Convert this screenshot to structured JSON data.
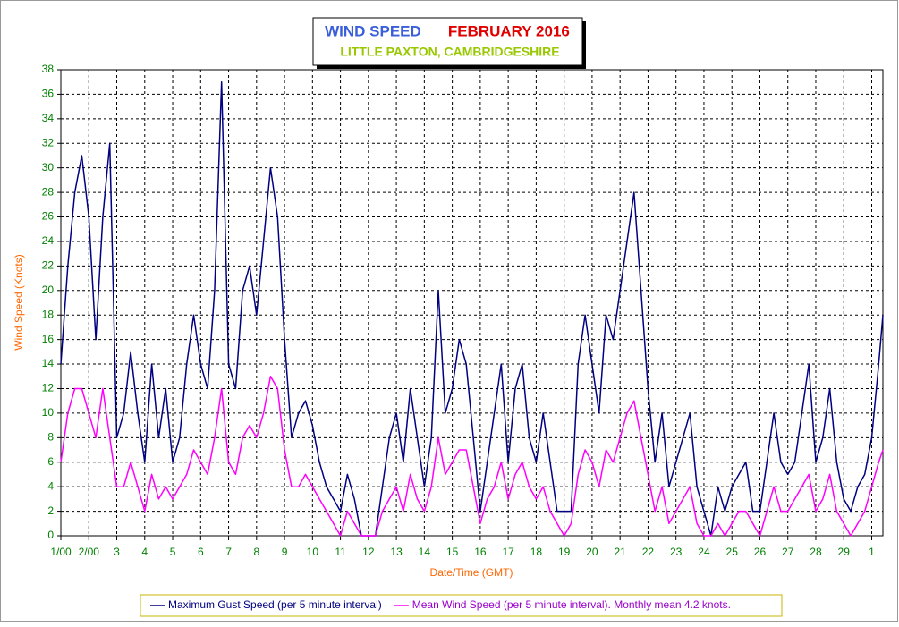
{
  "chart_data": {
    "type": "line",
    "title_parts": [
      {
        "text": "WIND SPEED",
        "color": "#3a5fd9"
      },
      {
        "text": "FEBRUARY 2016",
        "color": "#e00000"
      }
    ],
    "subtitle": "LITTLE PAXTON, CAMBRIDGESHIRE",
    "subtitle_color": "#99c800",
    "x_label": "Date/Time (GMT)",
    "y_label": "Wind Speed (Knots)",
    "x": [
      1,
      1.25,
      1.5,
      1.75,
      2,
      2.25,
      2.5,
      2.75,
      3,
      3.25,
      3.5,
      3.75,
      4,
      4.25,
      4.5,
      4.75,
      5,
      5.25,
      5.5,
      5.75,
      6,
      6.25,
      6.5,
      6.75,
      7,
      7.25,
      7.5,
      7.75,
      8,
      8.25,
      8.5,
      8.75,
      9,
      9.25,
      9.5,
      9.75,
      10,
      10.25,
      10.5,
      10.75,
      11,
      11.25,
      11.5,
      11.75,
      12,
      12.25,
      12.5,
      12.75,
      13,
      13.25,
      13.5,
      13.75,
      14,
      14.25,
      14.5,
      14.75,
      15,
      15.25,
      15.5,
      15.75,
      16,
      16.25,
      16.5,
      16.75,
      17,
      17.25,
      17.5,
      17.75,
      18,
      18.25,
      18.5,
      18.75,
      19,
      19.25,
      19.5,
      19.75,
      20,
      20.25,
      20.5,
      20.75,
      21,
      21.25,
      21.5,
      21.75,
      22,
      22.25,
      22.5,
      22.75,
      23,
      23.25,
      23.5,
      23.75,
      24,
      24.25,
      24.5,
      24.75,
      25,
      25.25,
      25.5,
      25.75,
      26,
      26.25,
      26.5,
      26.75,
      27,
      27.25,
      27.5,
      27.75,
      28,
      28.25,
      28.5,
      28.75,
      29,
      29.25,
      29.5,
      29.75,
      30,
      30.25,
      30.4
    ],
    "series": [
      {
        "name": "Maximum Gust Speed (per 5 minute interval)",
        "color": "#000080",
        "values": [
          14,
          22,
          28,
          31,
          26,
          16,
          26,
          32,
          8,
          10,
          15,
          10,
          6,
          14,
          8,
          12,
          6,
          8,
          14,
          18,
          14,
          12,
          20,
          37,
          14,
          12,
          20,
          22,
          18,
          24,
          30,
          26,
          16,
          8,
          10,
          11,
          9,
          6,
          4,
          3,
          2,
          5,
          3,
          0,
          0,
          0,
          4,
          8,
          10,
          6,
          12,
          8,
          4,
          8,
          20,
          10,
          12,
          16,
          14,
          8,
          2,
          6,
          10,
          14,
          6,
          12,
          14,
          8,
          6,
          10,
          6,
          2,
          2,
          2,
          14,
          18,
          14,
          10,
          18,
          16,
          20,
          24,
          28,
          20,
          12,
          6,
          10,
          4,
          6,
          8,
          10,
          4,
          2,
          0,
          4,
          2,
          4,
          5,
          6,
          2,
          2,
          6,
          10,
          6,
          5,
          6,
          10,
          14,
          6,
          8,
          12,
          6,
          3,
          2,
          4,
          5,
          8,
          14,
          18
        ]
      },
      {
        "name": "Mean Wind Speed (per 5 minute interval). Monthly mean 4.2 knots.",
        "color": "#ff00ff",
        "values": [
          6,
          10,
          12,
          12,
          10,
          8,
          12,
          8,
          4,
          4,
          6,
          4,
          2,
          5,
          3,
          4,
          3,
          4,
          5,
          7,
          6,
          5,
          8,
          12,
          6,
          5,
          8,
          9,
          8,
          10,
          13,
          12,
          7,
          4,
          4,
          5,
          4,
          3,
          2,
          1,
          0,
          2,
          1,
          0,
          0,
          0,
          2,
          3,
          4,
          2,
          5,
          3,
          2,
          4,
          8,
          5,
          6,
          7,
          7,
          4,
          1,
          3,
          4,
          6,
          3,
          5,
          6,
          4,
          3,
          4,
          2,
          1,
          0,
          1,
          5,
          7,
          6,
          4,
          7,
          6,
          8,
          10,
          11,
          8,
          5,
          2,
          4,
          1,
          2,
          3,
          4,
          1,
          0,
          0,
          1,
          0,
          1,
          2,
          2,
          1,
          0,
          2,
          4,
          2,
          2,
          3,
          4,
          5,
          2,
          3,
          5,
          2,
          1,
          0,
          1,
          2,
          4,
          6,
          7
        ]
      }
    ],
    "xlim": [
      1,
      30.4
    ],
    "xticks": [
      {
        "value": 1,
        "label": "1/00"
      },
      {
        "value": 2,
        "label": "2/00"
      },
      3,
      4,
      5,
      6,
      7,
      8,
      9,
      10,
      11,
      12,
      13,
      14,
      15,
      16,
      17,
      18,
      19,
      20,
      21,
      22,
      23,
      24,
      25,
      26,
      27,
      28,
      29,
      {
        "value": 30,
        "label": "1"
      }
    ],
    "ylim": [
      0,
      38
    ],
    "yticks": [
      0,
      2,
      4,
      6,
      8,
      10,
      12,
      14,
      16,
      18,
      20,
      22,
      24,
      26,
      28,
      30,
      32,
      34,
      36,
      38
    ],
    "grid": true
  }
}
